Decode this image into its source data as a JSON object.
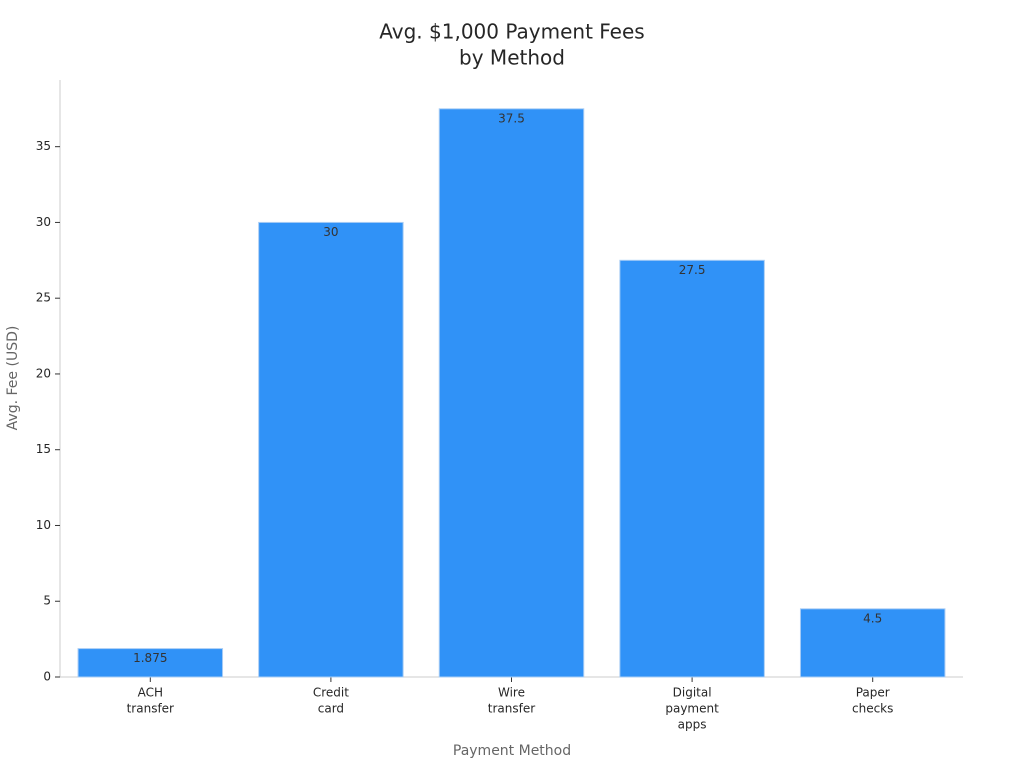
{
  "chart_data": {
    "type": "bar",
    "title": [
      "Avg. $1,000 Payment Fees",
      "by Method"
    ],
    "x_label": "Payment Method",
    "y_label": "Avg. Fee (USD)",
    "categories": [
      [
        "ACH",
        "transfer"
      ],
      [
        "Credit",
        "card"
      ],
      [
        "Wire",
        "transfer"
      ],
      [
        "Digital",
        "payment",
        "apps"
      ],
      [
        "Paper",
        "checks"
      ]
    ],
    "values": [
      1.875,
      30,
      37.5,
      27.5,
      4.5
    ],
    "color": "#3092f7",
    "ylim": [
      0,
      39.4
    ],
    "yticks": [
      0,
      5,
      10,
      15,
      20,
      25,
      30,
      35
    ],
    "grid": false
  }
}
